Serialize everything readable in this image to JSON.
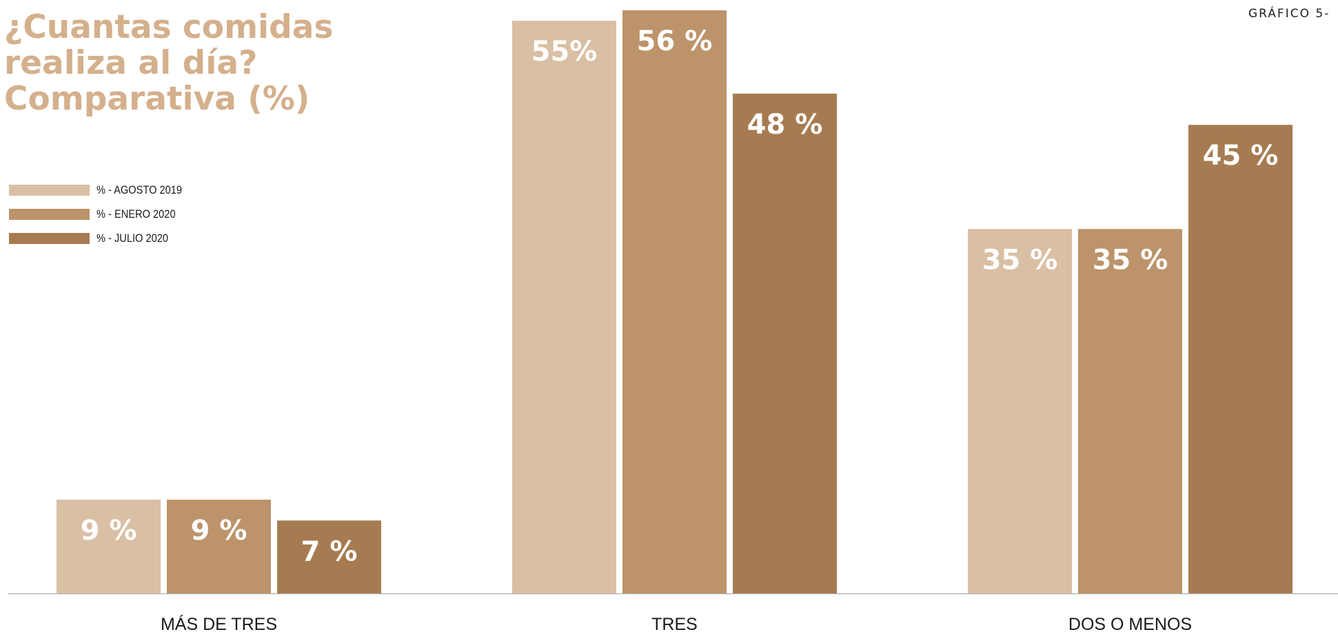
{
  "chart_id": "GRÁFICO 5-",
  "title_lines": [
    "¿Cuantas comidas",
    "realiza al día?",
    "Comparativa (%)"
  ],
  "legend": {
    "items": [
      {
        "label": "% - AGOSTO 2019",
        "color": "#d9bfa4"
      },
      {
        "label": "% - ENERO 2020",
        "color": "#bc936a"
      },
      {
        "label": "% - JULIO 2020",
        "color": "#a67b51"
      }
    ]
  },
  "chart_data": {
    "type": "bar",
    "title": "¿Cuantas comidas realiza al día? Comparativa (%)",
    "categories": [
      "MÁS DE TRES",
      "TRES",
      "DOS O MENOS"
    ],
    "series": [
      {
        "name": "% - AGOSTO 2019",
        "values": [
          9,
          55,
          35
        ],
        "labels": [
          "9 %",
          "55%",
          "35 %"
        ],
        "color": "#d9bfa4"
      },
      {
        "name": "% - ENERO 2020",
        "values": [
          9,
          56,
          35
        ],
        "labels": [
          "9 %",
          "56 %",
          "35 %"
        ],
        "color": "#bc936a"
      },
      {
        "name": "% - JULIO 2020",
        "values": [
          7,
          48,
          45
        ],
        "labels": [
          "7 %",
          "48 %",
          "45 %"
        ],
        "color": "#a67b51"
      }
    ],
    "ylim": [
      0,
      56
    ],
    "grid": false,
    "legend_position": "top-left"
  }
}
